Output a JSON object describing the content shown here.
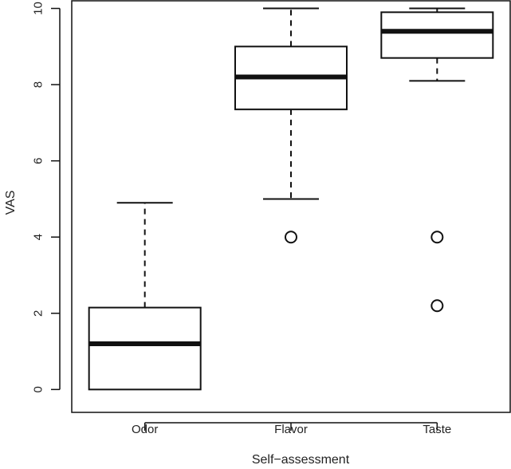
{
  "chart_data": {
    "type": "boxplot",
    "xlabel": "Self−assessment",
    "ylabel": "VAS",
    "ylim": [
      -0.6,
      10.2
    ],
    "yticks": [
      0,
      2,
      4,
      6,
      8,
      10
    ],
    "ytick_labels": [
      "0",
      "2",
      "4",
      "6",
      "8",
      "10"
    ],
    "categories": [
      "Odor",
      "Flavor",
      "Taste"
    ],
    "boxes": [
      {
        "label": "Odor",
        "min": 0,
        "q1": 0,
        "median": 1.2,
        "q3": 2.15,
        "max": 4.9,
        "outliers": []
      },
      {
        "label": "Flavor",
        "min": 5.0,
        "q1": 7.35,
        "median": 8.2,
        "q3": 9.0,
        "max": 10.0,
        "outliers": [
          4.0
        ]
      },
      {
        "label": "Taste",
        "min": 8.1,
        "q1": 8.7,
        "median": 9.4,
        "q3": 9.9,
        "max": 10.0,
        "outliers": [
          4.0,
          2.2
        ]
      }
    ],
    "grid": false
  }
}
